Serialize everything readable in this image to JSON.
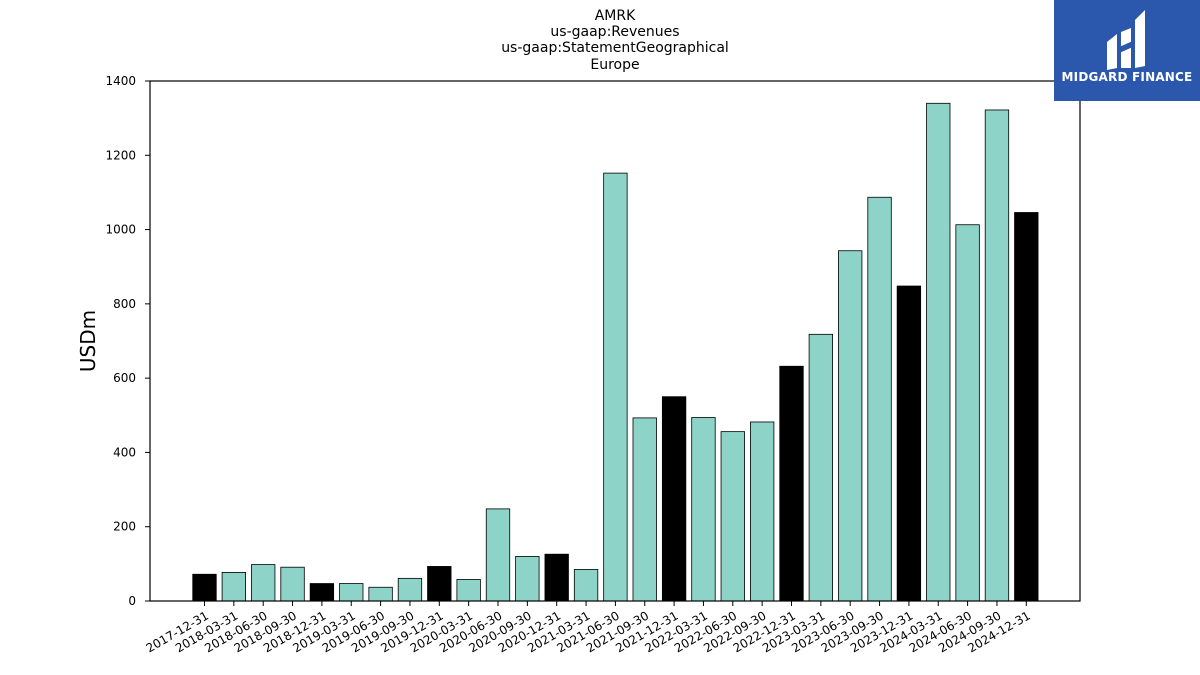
{
  "chart_data": {
    "type": "bar",
    "title": [
      "AMRK",
      "us-gaap:Revenues",
      "us-gaap:StatementGeographical",
      "Europe"
    ],
    "xlabel": "",
    "ylabel": "USDm",
    "ylim": [
      0,
      1400
    ],
    "yticks": [
      0,
      200,
      400,
      600,
      800,
      1000,
      1200,
      1400
    ],
    "grid": false,
    "colors": {
      "quarter": "#8dd3c7",
      "year_end": "#000000",
      "edge": "#000000"
    },
    "categories": [
      "2017-12-31",
      "2018-03-31",
      "2018-06-30",
      "2018-09-30",
      "2018-12-31",
      "2019-03-31",
      "2019-06-30",
      "2019-09-30",
      "2019-12-31",
      "2020-03-31",
      "2020-06-30",
      "2020-09-30",
      "2020-12-31",
      "2021-03-31",
      "2021-06-30",
      "2021-09-30",
      "2021-12-31",
      "2022-03-31",
      "2022-06-30",
      "2022-09-30",
      "2022-12-31",
      "2023-03-31",
      "2023-06-30",
      "2023-09-30",
      "2023-12-31",
      "2024-03-31",
      "2024-06-30",
      "2024-09-30",
      "2024-12-31"
    ],
    "values": [
      72,
      77,
      98,
      91,
      47,
      47,
      37,
      61,
      93,
      58,
      248,
      120,
      126,
      85,
      1152,
      493,
      550,
      494,
      456,
      482,
      632,
      718,
      943,
      1087,
      848,
      1340,
      1013,
      1322,
      1046
    ],
    "year_end": [
      true,
      false,
      false,
      false,
      true,
      false,
      false,
      false,
      true,
      false,
      false,
      false,
      true,
      false,
      false,
      false,
      true,
      false,
      false,
      false,
      true,
      false,
      false,
      false,
      true,
      false,
      false,
      false,
      true
    ]
  },
  "logo": {
    "text": "MIDGARD FINANCE",
    "background": "#2b57ad"
  }
}
